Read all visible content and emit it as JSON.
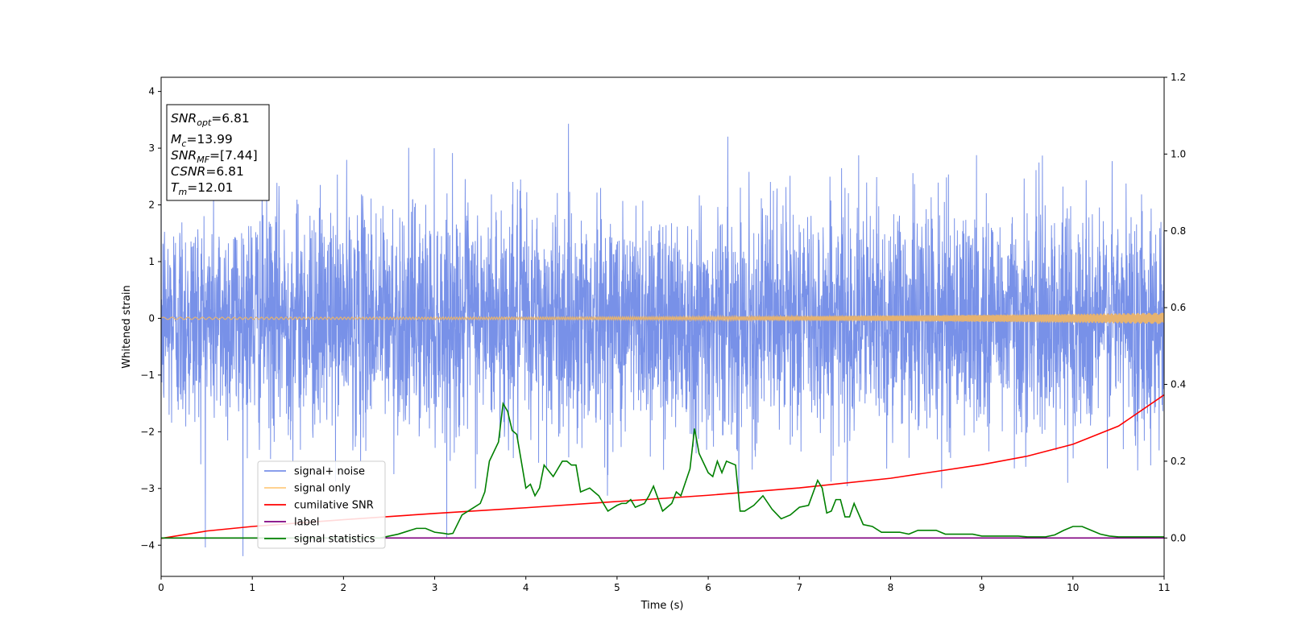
{
  "chart_data": {
    "type": "line",
    "xlabel": "Time (s)",
    "ylabel": "Whitened strain",
    "xlim": [
      0,
      11
    ],
    "ylim_left": [
      -4.55,
      4.25
    ],
    "ylim_right": [
      -0.1,
      1.2
    ],
    "xticks": [
      "0",
      "1",
      "2",
      "3",
      "4",
      "5",
      "6",
      "7",
      "8",
      "9",
      "10",
      "11"
    ],
    "yticks_left": [
      "−4",
      "−3",
      "−2",
      "−1",
      "0",
      "1",
      "2",
      "3",
      "4"
    ],
    "yticks_right": [
      "0.0",
      "0.2",
      "0.4",
      "0.6",
      "0.8",
      "1.0",
      "1.2"
    ],
    "info_box": {
      "snr_opt": {
        "base": "SNR",
        "sub": "opt",
        "value": "=6.81"
      },
      "mc": {
        "base": "M",
        "sub": "c",
        "value": "=13.99"
      },
      "snr_mf": {
        "base": "SNR",
        "sub": "MF",
        "value": "=[7.44]"
      },
      "csnr": {
        "base": "CSNR",
        "value": "=6.81"
      },
      "tm": {
        "base": "T",
        "sub": "m",
        "value": "=12.01"
      }
    },
    "legend": {
      "placement": "lower-left",
      "entries": [
        {
          "label": "signal+ noise",
          "color": "#7891e8"
        },
        {
          "label": "signal only",
          "color": "#ffcc80"
        },
        {
          "label": "cumilative SNR",
          "color": "#ff0000"
        },
        {
          "label": "label",
          "color": "#800080"
        },
        {
          "label": "signal statistics",
          "color": "#008000"
        }
      ]
    },
    "series": [
      {
        "name": "signal+ noise",
        "axis": "left",
        "color": "#7891e8",
        "description_hint": "dense random noise, std ~1, peaks near ±3.9",
        "std": 1.0
      },
      {
        "name": "signal only",
        "axis": "left",
        "color": "#e6b370",
        "amplitude_start": 0.02,
        "amplitude_end": 0.1
      },
      {
        "name": "cumilative SNR",
        "axis": "left",
        "color": "#ff0000",
        "x": [
          0,
          0.5,
          1,
          2,
          3,
          4,
          5,
          6,
          7,
          8,
          9,
          9.5,
          10,
          10.5,
          11
        ],
        "y": [
          -3.88,
          -3.75,
          -3.67,
          -3.55,
          -3.44,
          -3.34,
          -3.23,
          -3.12,
          -2.99,
          -2.82,
          -2.58,
          -2.43,
          -2.22,
          -1.9,
          -1.35
        ]
      },
      {
        "name": "label",
        "axis": "right",
        "color": "#800080",
        "x": [
          0,
          11
        ],
        "y": [
          0,
          0
        ]
      },
      {
        "name": "signal statistics",
        "axis": "right",
        "color": "#008000",
        "x": [
          0,
          2.4,
          2.6,
          2.8,
          2.9,
          3.0,
          3.1,
          3.15,
          3.2,
          3.3,
          3.4,
          3.5,
          3.55,
          3.6,
          3.7,
          3.75,
          3.8,
          3.85,
          3.9,
          4.0,
          4.05,
          4.1,
          4.15,
          4.2,
          4.3,
          4.4,
          4.45,
          4.5,
          4.55,
          4.6,
          4.7,
          4.75,
          4.8,
          4.9,
          5.0,
          5.05,
          5.1,
          5.15,
          5.2,
          5.3,
          5.35,
          5.4,
          5.5,
          5.6,
          5.65,
          5.7,
          5.8,
          5.85,
          5.9,
          6.0,
          6.05,
          6.1,
          6.15,
          6.2,
          6.3,
          6.35,
          6.4,
          6.5,
          6.6,
          6.7,
          6.8,
          6.9,
          7.0,
          7.1,
          7.2,
          7.25,
          7.3,
          7.35,
          7.4,
          7.45,
          7.5,
          7.55,
          7.6,
          7.7,
          7.8,
          7.9,
          8.0,
          8.1,
          8.2,
          8.3,
          8.4,
          8.5,
          8.6,
          8.7,
          8.8,
          8.9,
          9.0,
          9.1,
          9.2,
          9.3,
          9.4,
          9.5,
          9.6,
          9.7,
          9.8,
          9.9,
          10.0,
          10.1,
          10.2,
          10.3,
          10.4,
          10.5,
          10.6,
          10.7,
          10.8,
          11.0
        ],
        "y": [
          0,
          0,
          0.01,
          0.025,
          0.025,
          0.015,
          0.012,
          0.01,
          0.012,
          0.06,
          0.075,
          0.09,
          0.12,
          0.2,
          0.25,
          0.35,
          0.33,
          0.28,
          0.27,
          0.13,
          0.14,
          0.11,
          0.13,
          0.19,
          0.16,
          0.2,
          0.2,
          0.19,
          0.19,
          0.12,
          0.13,
          0.12,
          0.11,
          0.07,
          0.085,
          0.09,
          0.09,
          0.1,
          0.08,
          0.09,
          0.11,
          0.135,
          0.07,
          0.09,
          0.12,
          0.11,
          0.18,
          0.285,
          0.22,
          0.17,
          0.16,
          0.2,
          0.17,
          0.2,
          0.19,
          0.07,
          0.07,
          0.085,
          0.11,
          0.075,
          0.05,
          0.06,
          0.08,
          0.085,
          0.15,
          0.13,
          0.065,
          0.07,
          0.1,
          0.1,
          0.055,
          0.055,
          0.09,
          0.035,
          0.03,
          0.015,
          0.015,
          0.015,
          0.01,
          0.02,
          0.02,
          0.02,
          0.01,
          0.01,
          0.01,
          0.01,
          0.005,
          0.005,
          0.005,
          0.005,
          0.005,
          0.003,
          0.003,
          0.003,
          0.008,
          0.02,
          0.03,
          0.03,
          0.02,
          0.01,
          0.005,
          0.003,
          0.003,
          0.003,
          0.003,
          0.003
        ]
      }
    ]
  }
}
